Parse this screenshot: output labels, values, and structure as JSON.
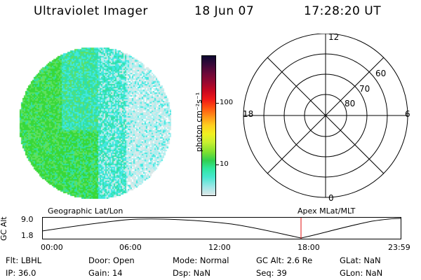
{
  "header": {
    "instrument": "Ultraviolet Imager",
    "date": "18 Jun 07",
    "time": "17:28:20 UT"
  },
  "colorbar": {
    "unit_label": "photon cm⁻²s⁻¹",
    "ticks": [
      "100",
      "10"
    ],
    "colors": [
      "#dfe7e7",
      "#9fe7e7",
      "#47e7cf",
      "#30e7a0",
      "#30d050",
      "#7fe030",
      "#c7ef30",
      "#f0f020",
      "#ffd020",
      "#ff9818",
      "#ff5010",
      "#ef1818",
      "#c80820",
      "#980830",
      "#680838",
      "#380838",
      "#0c0830"
    ]
  },
  "image": {
    "colors": {
      "green": "#38d838",
      "lime": "#60e060",
      "teal": "#30e0a8",
      "cyan": "#40e8e0",
      "pale": "#d8e8e8",
      "lightcyan": "#a8f0f0"
    }
  },
  "polar_grid": {
    "lat_labels": [
      "60",
      "70",
      "80"
    ],
    "mlt_labels": {
      "top": "12",
      "left": "18",
      "right": "6",
      "bottom": "0"
    }
  },
  "timeseries": {
    "left_title": "Geographic Lat/Lon",
    "right_title": "Apex MLat/MLT",
    "y_axis_label": "GC Alt",
    "y_ticks": [
      "9.0",
      "1.8"
    ],
    "x_ticks": [
      "00:00",
      "06:00",
      "12:00",
      "18:00",
      "23:59"
    ],
    "marker_color": "#e01010"
  },
  "info": {
    "filter": "Flt: LBHL",
    "ip": "IP: 36.0",
    "door": "Door: Open",
    "gain": "Gain: 14",
    "mode": "Mode: Normal",
    "dsp": "Dsp:        NaN",
    "gcalt": "GC Alt: 2.6 Re",
    "seq": "Seq: 39",
    "glat": "GLat:        NaN",
    "glon": "GLon:        NaN"
  }
}
